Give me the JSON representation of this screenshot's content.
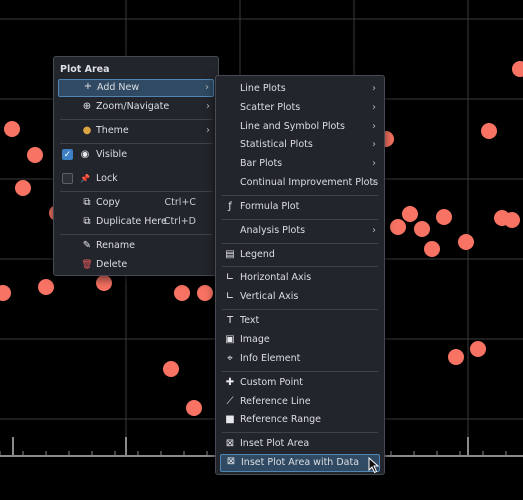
{
  "plot": {
    "colors": {
      "background": "#000000",
      "grid": "#3a3a3a",
      "point": "#f87363",
      "axis": "#8a8a8a"
    },
    "points": [
      [
        12,
        129
      ],
      [
        35,
        155
      ],
      [
        23,
        188
      ],
      [
        57,
        213
      ],
      [
        46,
        287
      ],
      [
        3,
        293
      ],
      [
        104,
        283
      ],
      [
        182,
        293
      ],
      [
        205,
        293
      ],
      [
        171,
        369
      ],
      [
        194,
        408
      ],
      [
        386,
        139
      ],
      [
        489,
        131
      ],
      [
        520,
        69
      ],
      [
        410,
        214
      ],
      [
        398,
        227
      ],
      [
        422,
        229
      ],
      [
        444,
        217
      ],
      [
        466,
        242
      ],
      [
        432,
        249
      ],
      [
        502,
        218
      ],
      [
        512,
        220
      ],
      [
        478,
        349
      ],
      [
        456,
        357
      ]
    ]
  },
  "menu1": {
    "title": "Plot Area",
    "items": [
      {
        "name": "add-new",
        "icon": "plus-icon",
        "glyph": "+",
        "label": "Add New",
        "arrow": "›",
        "highlighted": true
      },
      {
        "name": "zoom-navigate",
        "icon": "magnifier-icon",
        "glyph": "⊕",
        "label": "Zoom/Navigate",
        "arrow": "›"
      },
      {
        "name": "theme",
        "icon": "palette-icon",
        "glyph": "●",
        "label": "Theme",
        "arrow": "›"
      },
      {
        "name": "visible",
        "icon": "eye-icon",
        "glyph": "◉",
        "label": "Visible",
        "checkbox": "on"
      },
      {
        "name": "lock",
        "icon": "pin-icon",
        "glyph": "📌",
        "label": "Lock",
        "checkbox": "off"
      },
      {
        "name": "copy",
        "icon": "copy-icon",
        "glyph": "⧉",
        "label": "Copy",
        "shortcut": "Ctrl+C"
      },
      {
        "name": "duplicate-here",
        "icon": "duplicate-icon",
        "glyph": "⧉",
        "label": "Duplicate Here",
        "shortcut": "Ctrl+D"
      },
      {
        "name": "rename",
        "icon": "pencil-icon",
        "glyph": "✎",
        "label": "Rename"
      },
      {
        "name": "delete",
        "icon": "trash-icon",
        "glyph": "🗑",
        "label": "Delete"
      }
    ]
  },
  "menu2": {
    "items": [
      {
        "name": "line-plots",
        "label": "Line Plots",
        "arrow": "›"
      },
      {
        "name": "scatter-plots",
        "label": "Scatter Plots",
        "arrow": "›"
      },
      {
        "name": "line-and-symbol-plots",
        "label": "Line and Symbol Plots",
        "arrow": "›"
      },
      {
        "name": "statistical-plots",
        "label": "Statistical Plots",
        "arrow": "›"
      },
      {
        "name": "bar-plots",
        "label": "Bar Plots",
        "arrow": "›"
      },
      {
        "name": "continual-improvement-plots",
        "label": "Continual Improvement Plots",
        "arrow": "›"
      },
      {
        "name": "formula-plot",
        "icon": "function-icon",
        "glyph": "ƒ",
        "label": "Formula Plot"
      },
      {
        "name": "analysis-plots",
        "label": "Analysis Plots",
        "arrow": "›"
      },
      {
        "name": "legend",
        "icon": "legend-icon",
        "glyph": "▤",
        "label": "Legend"
      },
      {
        "name": "horizontal-axis",
        "icon": "horizontal-axis-icon",
        "glyph": "∟",
        "label": "Horizontal Axis"
      },
      {
        "name": "vertical-axis",
        "icon": "vertical-axis-icon",
        "glyph": "∟",
        "label": "Vertical Axis"
      },
      {
        "name": "text",
        "icon": "text-icon",
        "glyph": "T",
        "label": "Text"
      },
      {
        "name": "image",
        "icon": "image-icon",
        "glyph": "▣",
        "label": "Image"
      },
      {
        "name": "info-element",
        "icon": "info-element-icon",
        "glyph": "⌖",
        "label": "Info Element"
      },
      {
        "name": "custom-point",
        "icon": "cross-point-icon",
        "glyph": "✚",
        "label": "Custom Point"
      },
      {
        "name": "reference-line",
        "icon": "diagonal-line-icon",
        "glyph": "⟋",
        "label": "Reference Line"
      },
      {
        "name": "reference-range",
        "icon": "range-icon",
        "glyph": "■",
        "label": "Reference Range"
      },
      {
        "name": "inset-plot-area",
        "icon": "inset-plot-icon",
        "glyph": "⊠",
        "label": "Inset Plot Area"
      },
      {
        "name": "inset-plot-area-with-data",
        "icon": "inset-plot-data-icon",
        "glyph": "⊠",
        "label": "Inset Plot Area with Data",
        "highlighted": true
      }
    ]
  }
}
